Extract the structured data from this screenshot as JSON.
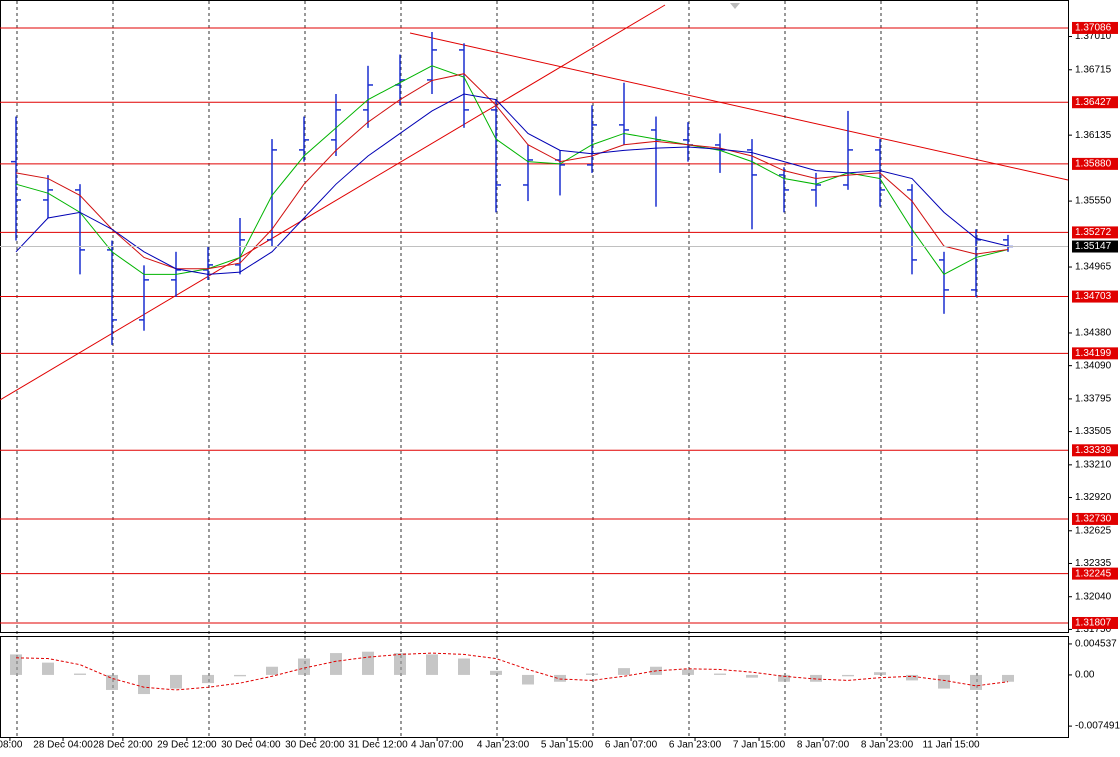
{
  "chart_data": [
    {
      "type": "ohlc",
      "color": "#1a2fd0",
      "xlim": [
        -0.5,
        32.875
      ],
      "ylim": [
        1.31727,
        1.37334
      ],
      "xticks": [
        {
          "value": -0.19,
          "label": "08:00"
        },
        {
          "value": 1.47,
          "label": "28 Dec 04:00"
        },
        {
          "value": 3.34,
          "label": "28 Dec 20:00"
        },
        {
          "value": 5.34,
          "label": "29 Dec 12:00"
        },
        {
          "value": 7.34,
          "label": "30 Dec 04:00"
        },
        {
          "value": 9.34,
          "label": "30 Dec 20:00"
        },
        {
          "value": 11.31,
          "label": "31 Dec 12:00"
        },
        {
          "value": 13.16,
          "label": "4 Jan 07:00"
        },
        {
          "value": 15.22,
          "label": "4 Jan 23:00"
        },
        {
          "value": 17.22,
          "label": "5 Jan 15:00"
        },
        {
          "value": 19.22,
          "label": "6 Jan 07:00"
        },
        {
          "value": 21.22,
          "label": "6 Jan 23:00"
        },
        {
          "value": 23.22,
          "label": "7 Jan 15:00"
        },
        {
          "value": 25.22,
          "label": "8 Jan 07:00"
        },
        {
          "value": 27.22,
          "label": "8 Jan 23:00"
        },
        {
          "value": 29.22,
          "label": "11 Jan 15:00"
        }
      ],
      "yticks": [
        {
          "value": 1.3701,
          "label": "1.37010"
        },
        {
          "value": 1.36715,
          "label": "1.36715"
        },
        {
          "value": 1.36135,
          "label": "1.36135"
        },
        {
          "value": 1.3555,
          "label": "1.35550"
        },
        {
          "value": 1.34965,
          "label": "1.34965"
        },
        {
          "value": 1.3438,
          "label": "1.34380"
        },
        {
          "value": 1.3409,
          "label": "1.34090"
        },
        {
          "value": 1.33795,
          "label": "1.33795"
        },
        {
          "value": 1.33505,
          "label": "1.33505"
        },
        {
          "value": 1.3321,
          "label": "1.33210"
        },
        {
          "value": 1.3292,
          "label": "1.32920"
        },
        {
          "value": 1.32625,
          "label": "1.32625"
        },
        {
          "value": 1.32335,
          "label": "1.32335"
        },
        {
          "value": 1.3204,
          "label": "1.32040"
        },
        {
          "value": 1.3175,
          "label": "1.31750"
        }
      ],
      "ohlc": [
        [
          1.359,
          1.363,
          1.352,
          1.3556
        ],
        [
          1.3556,
          1.3578,
          1.354,
          1.35649
        ],
        [
          1.35649,
          1.357,
          1.349,
          1.35117
        ],
        [
          1.35117,
          1.352,
          1.34274,
          1.34496
        ],
        [
          1.34496,
          1.3498,
          1.344,
          1.34851
        ],
        [
          1.34851,
          1.351,
          1.347,
          1.34939
        ],
        [
          1.34939,
          1.3515,
          1.3485,
          1.34984
        ],
        [
          1.34984,
          1.354,
          1.349,
          1.35206
        ],
        [
          1.35206,
          1.361,
          1.3515,
          1.36004
        ],
        [
          1.36004,
          1.363,
          1.359,
          1.36093
        ],
        [
          1.36093,
          1.365,
          1.3595,
          1.36359
        ],
        [
          1.36359,
          1.3675,
          1.362,
          1.3658
        ],
        [
          1.3658,
          1.3685,
          1.364,
          1.36625
        ],
        [
          1.36625,
          1.3705,
          1.365,
          1.36891
        ],
        [
          1.36891,
          1.3695,
          1.362,
          1.36359
        ],
        [
          1.36359,
          1.3645,
          1.3545,
          1.35693
        ],
        [
          1.35693,
          1.3605,
          1.3555,
          1.35915
        ],
        [
          1.35915,
          1.36,
          1.356,
          1.35871
        ],
        [
          1.35871,
          1.364,
          1.358,
          1.36226
        ],
        [
          1.36226,
          1.366,
          1.3605,
          1.36181
        ],
        [
          1.36181,
          1.363,
          1.355,
          1.36093
        ],
        [
          1.36093,
          1.3625,
          1.359,
          1.36048
        ],
        [
          1.36048,
          1.3615,
          1.358,
          1.36004
        ],
        [
          1.36004,
          1.361,
          1.353,
          1.35782
        ],
        [
          1.35782,
          1.3585,
          1.3545,
          1.35649
        ],
        [
          1.35649,
          1.358,
          1.355,
          1.35693
        ],
        [
          1.35693,
          1.3635,
          1.3565,
          1.36004
        ],
        [
          1.36004,
          1.361,
          1.355,
          1.35649
        ],
        [
          1.35649,
          1.357,
          1.349,
          1.35028
        ],
        [
          1.35028,
          1.351,
          1.3455,
          1.34762
        ],
        [
          1.34762,
          1.353,
          1.347,
          1.35206
        ],
        [
          1.35206,
          1.3525,
          1.351,
          1.35147
        ]
      ],
      "lines": [
        {
          "color": "#00b400",
          "values": [
            1.357,
            1.3562,
            1.3545,
            1.351,
            1.349,
            1.349,
            1.3495,
            1.3505,
            1.356,
            1.3595,
            1.362,
            1.3645,
            1.366,
            1.3675,
            1.3665,
            1.361,
            1.359,
            1.3588,
            1.3605,
            1.3615,
            1.361,
            1.3605,
            1.36,
            1.359,
            1.3575,
            1.357,
            1.358,
            1.3575,
            1.353,
            1.349,
            1.3505,
            1.3512
          ]
        },
        {
          "color": "#d01010",
          "values": [
            1.358,
            1.3575,
            1.356,
            1.353,
            1.3505,
            1.3495,
            1.3495,
            1.35,
            1.353,
            1.357,
            1.36,
            1.3625,
            1.3645,
            1.3662,
            1.3668,
            1.364,
            1.3605,
            1.359,
            1.3595,
            1.3605,
            1.3608,
            1.3605,
            1.3602,
            1.3595,
            1.3582,
            1.3575,
            1.3578,
            1.358,
            1.3555,
            1.3515,
            1.3508,
            1.3512
          ]
        },
        {
          "color": "#0000b4",
          "values": [
            1.351,
            1.354,
            1.3545,
            1.353,
            1.351,
            1.3495,
            1.349,
            1.3492,
            1.351,
            1.354,
            1.357,
            1.3595,
            1.3615,
            1.3635,
            1.365,
            1.3645,
            1.3615,
            1.36,
            1.3597,
            1.36,
            1.3602,
            1.3603,
            1.3601,
            1.3598,
            1.359,
            1.3582,
            1.358,
            1.3582,
            1.3575,
            1.3545,
            1.3522,
            1.3515
          ]
        }
      ],
      "levels_color": "#e00000",
      "levels": [
        1.37086,
        1.36427,
        {
          "value": 1.3588,
          "label": "1.35880"
        },
        1.35272,
        1.34703,
        1.34199,
        1.33339,
        {
          "value": 1.3273,
          "label": "1.32730"
        },
        1.32245,
        1.31807
      ],
      "current_price": 1.35147
    },
    {
      "type": "oscillator",
      "color": "#a0a0a0",
      "signal_color": "#e00000",
      "ylim": [
        -0.009085,
        0.005551
      ],
      "yticks": [
        0.004537,
        {
          "value": 0,
          "label": "0.00"
        },
        -0.007491
      ],
      "values": [
        0.003,
        0.0018,
        0.0002,
        -0.0022,
        -0.0028,
        -0.002,
        -0.0012,
        -0.0002,
        0.0012,
        0.0024,
        0.0032,
        0.0034,
        0.0032,
        0.003,
        0.0024,
        0.0006,
        -0.0014,
        -0.001,
        0.0002,
        0.001,
        0.0012,
        0.0008,
        0.0002,
        -0.0004,
        -0.001,
        -0.001,
        -0.0002,
        0.0004,
        -0.0008,
        -0.002,
        -0.0022,
        -0.001
      ],
      "signal": [
        0.0025,
        0.0024,
        0.0015,
        -0.0005,
        -0.0018,
        -0.0022,
        -0.0018,
        -0.0012,
        -0.0002,
        0.001,
        0.002,
        0.0026,
        0.003,
        0.0032,
        0.003,
        0.0024,
        0.0008,
        -0.0006,
        -0.0008,
        -0.0002,
        0.0006,
        0.0009,
        0.0008,
        0.0004,
        -0.0002,
        -0.0006,
        -0.0008,
        -0.0004,
        -0.0002,
        -0.0008,
        -0.0016,
        -0.001
      ]
    }
  ]
}
